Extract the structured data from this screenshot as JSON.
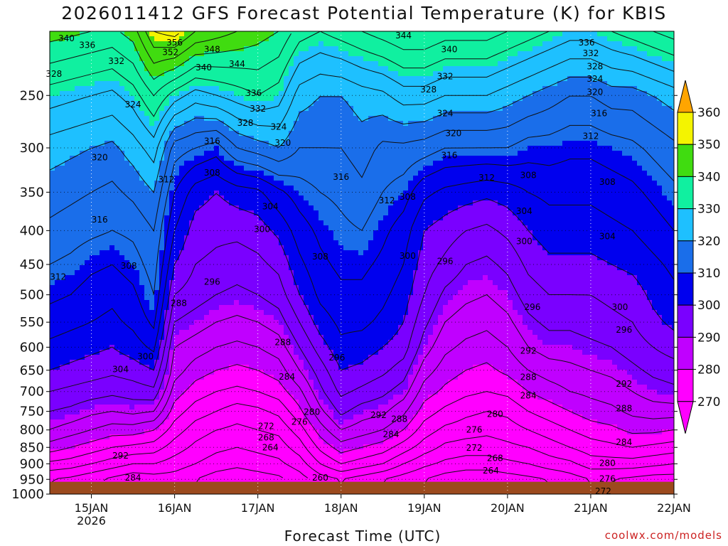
{
  "chart_data": {
    "type": "heatmap",
    "title": "2026011412 GFS Forecast Potential Temperature (K) for KBIS",
    "xlabel": "Forecast Time (UTC)",
    "ylabel": "",
    "credit": "coolwx.com/models",
    "x_ticks": [
      "15JAN",
      "16JAN",
      "17JAN",
      "18JAN",
      "19JAN",
      "20JAN",
      "21JAN",
      "22JAN"
    ],
    "x_tick_sublabel": "2026",
    "xlim_days": [
      14.5,
      22.0
    ],
    "y_ticks": [
      250,
      300,
      350,
      400,
      450,
      500,
      550,
      600,
      650,
      700,
      750,
      800,
      850,
      900,
      950,
      1000
    ],
    "ylim_hPa": [
      200,
      1000
    ],
    "y_scale": "log",
    "ground": {
      "label": "terrain",
      "top_hPa": 958,
      "color": "#9c4a1e"
    },
    "colorbar": {
      "levels": [
        270,
        280,
        290,
        300,
        310,
        320,
        330,
        340,
        350,
        360
      ],
      "colors": [
        "#ff00ff",
        "#c000ff",
        "#7a00ff",
        "#0000ee",
        "#1a6eea",
        "#1ec0ff",
        "#10f0a0",
        "#40dc10",
        "#f4f400",
        "#ffa500"
      ],
      "extend_both": true
    },
    "contour_interval_K": 4,
    "theta_profiles": {
      "days": [
        14.5,
        14.75,
        15.0,
        15.25,
        15.5,
        15.75,
        16.0,
        16.25,
        16.5,
        16.75,
        17.0,
        17.25,
        17.5,
        17.75,
        18.0,
        18.25,
        18.5,
        18.75,
        19.0,
        19.25,
        19.5,
        19.75,
        20.0,
        20.25,
        20.5,
        20.75,
        21.0,
        21.25,
        21.5,
        21.75,
        22.0
      ],
      "pressures_hPa": [
        950,
        900,
        850,
        800,
        750,
        700,
        650,
        600,
        550,
        500,
        450,
        400,
        350,
        300,
        250,
        200
      ],
      "theta_K": [
        [
          268,
          275,
          282,
          288,
          292,
          296,
          300,
          303,
          306,
          309,
          312,
          315,
          318,
          322,
          330,
          342
        ],
        [
          267,
          274,
          280,
          286,
          291,
          295,
          299,
          302,
          305,
          308,
          311,
          314,
          317,
          321,
          329,
          341
        ],
        [
          265,
          272,
          278,
          284,
          289,
          294,
          298,
          301,
          304,
          306,
          309,
          313,
          316,
          320,
          328,
          340
        ],
        [
          263,
          270,
          276,
          282,
          288,
          293,
          297,
          300,
          303,
          305,
          308,
          312,
          315,
          319,
          327,
          339
        ],
        [
          261,
          268,
          275,
          282,
          289,
          294,
          298,
          302,
          305,
          307,
          310,
          313,
          317,
          322,
          330,
          342
        ],
        [
          262,
          268,
          274,
          280,
          288,
          295,
          300,
          305,
          309,
          312,
          314,
          316,
          320,
          326,
          336,
          352
        ],
        [
          262,
          266,
          270,
          274,
          278,
          282,
          286,
          288,
          292,
          296,
          300,
          304,
          308,
          314,
          330,
          354
        ],
        [
          260,
          264,
          267,
          270,
          274,
          278,
          282,
          286,
          290,
          294,
          296,
          298,
          302,
          312,
          326,
          348
        ],
        [
          258,
          262,
          265,
          268,
          272,
          276,
          280,
          284,
          288,
          292,
          295,
          297,
          300,
          310,
          328,
          346
        ],
        [
          257,
          261,
          264,
          267,
          270,
          275,
          279,
          283,
          287,
          291,
          294,
          297,
          302,
          316,
          330,
          344
        ],
        [
          258,
          262,
          265,
          268,
          271,
          276,
          280,
          284,
          288,
          292,
          295,
          298,
          303,
          318,
          332,
          342
        ],
        [
          259,
          263,
          266,
          269,
          273,
          278,
          282,
          286,
          290,
          294,
          297,
          301,
          307,
          320,
          330,
          340
        ],
        [
          262,
          266,
          270,
          274,
          279,
          283,
          288,
          292,
          296,
          300,
          303,
          306,
          310,
          316,
          322,
          334
        ],
        [
          266,
          272,
          277,
          282,
          287,
          291,
          294,
          298,
          302,
          305,
          307,
          309,
          312,
          316,
          320,
          332
        ],
        [
          268,
          276,
          282,
          288,
          293,
          297,
          300,
          303,
          305,
          307,
          309,
          311,
          313,
          316,
          320,
          334
        ],
        [
          266,
          274,
          280,
          286,
          290,
          295,
          299,
          302,
          305,
          307,
          309,
          312,
          315,
          318,
          322,
          336
        ],
        [
          264,
          272,
          278,
          284,
          289,
          293,
          297,
          300,
          303,
          305,
          307,
          309,
          312,
          315,
          323,
          338
        ],
        [
          262,
          268,
          274,
          280,
          285,
          290,
          294,
          298,
          300,
          302,
          304,
          306,
          310,
          315,
          326,
          340
        ],
        [
          260,
          265,
          270,
          274,
          278,
          282,
          286,
          290,
          293,
          296,
          298,
          300,
          305,
          314,
          326,
          340
        ],
        [
          258,
          263,
          267,
          271,
          275,
          279,
          282,
          285,
          288,
          291,
          295,
          298,
          303,
          312,
          324,
          338
        ],
        [
          257,
          262,
          266,
          270,
          273,
          277,
          280,
          283,
          286,
          289,
          292,
          296,
          302,
          312,
          324,
          338
        ],
        [
          257,
          262,
          266,
          269,
          272,
          276,
          279,
          282,
          285,
          288,
          291,
          295,
          301,
          312,
          324,
          338
        ],
        [
          258,
          263,
          267,
          270,
          273,
          277,
          281,
          284,
          287,
          290,
          293,
          297,
          302,
          312,
          322,
          336
        ],
        [
          259,
          264,
          268,
          272,
          276,
          280,
          284,
          288,
          291,
          294,
          297,
          300,
          304,
          310,
          320,
          334
        ],
        [
          260,
          266,
          270,
          274,
          278,
          282,
          286,
          290,
          293,
          296,
          299,
          302,
          305,
          310,
          318,
          332
        ],
        [
          262,
          267,
          272,
          276,
          280,
          284,
          287,
          290,
          293,
          296,
          299,
          302,
          305,
          309,
          316,
          330
        ],
        [
          264,
          270,
          274,
          278,
          282,
          285,
          288,
          291,
          294,
          296,
          299,
          302,
          305,
          309,
          316,
          330
        ],
        [
          264,
          270,
          275,
          279,
          283,
          286,
          289,
          292,
          295,
          297,
          300,
          303,
          306,
          310,
          318,
          332
        ],
        [
          263,
          270,
          276,
          281,
          285,
          288,
          291,
          294,
          296,
          298,
          301,
          304,
          307,
          311,
          318,
          334
        ],
        [
          262,
          269,
          275,
          281,
          286,
          290,
          293,
          296,
          299,
          301,
          303,
          306,
          309,
          313,
          320,
          336
        ],
        [
          262,
          268,
          274,
          280,
          286,
          291,
          294,
          298,
          301,
          303,
          305,
          308,
          311,
          315,
          322,
          338
        ]
      ]
    },
    "contour_labels": [
      {
        "text": "340",
        "day": 14.7,
        "p": 205
      },
      {
        "text": "336",
        "day": 14.95,
        "p": 210
      },
      {
        "text": "332",
        "day": 15.3,
        "p": 222
      },
      {
        "text": "328",
        "day": 14.55,
        "p": 232
      },
      {
        "text": "324",
        "day": 15.5,
        "p": 258
      },
      {
        "text": "320",
        "day": 15.1,
        "p": 310
      },
      {
        "text": "316",
        "day": 15.1,
        "p": 385
      },
      {
        "text": "312",
        "day": 14.6,
        "p": 470
      },
      {
        "text": "308",
        "day": 15.45,
        "p": 452
      },
      {
        "text": "304",
        "day": 15.35,
        "p": 648
      },
      {
        "text": "300",
        "day": 15.65,
        "p": 620
      },
      {
        "text": "292",
        "day": 15.35,
        "p": 875
      },
      {
        "text": "284",
        "day": 15.5,
        "p": 945
      },
      {
        "text": "356",
        "day": 16.0,
        "p": 208
      },
      {
        "text": "352",
        "day": 15.95,
        "p": 215
      },
      {
        "text": "348",
        "day": 16.45,
        "p": 213
      },
      {
        "text": "340",
        "day": 16.35,
        "p": 227
      },
      {
        "text": "344",
        "day": 16.75,
        "p": 224
      },
      {
        "text": "336",
        "day": 16.95,
        "p": 248
      },
      {
        "text": "332",
        "day": 17.0,
        "p": 262
      },
      {
        "text": "328",
        "day": 16.85,
        "p": 275
      },
      {
        "text": "324",
        "day": 17.25,
        "p": 279
      },
      {
        "text": "320",
        "day": 17.3,
        "p": 295
      },
      {
        "text": "316",
        "day": 16.45,
        "p": 293
      },
      {
        "text": "312",
        "day": 15.9,
        "p": 335
      },
      {
        "text": "308",
        "day": 16.45,
        "p": 327
      },
      {
        "text": "304",
        "day": 17.15,
        "p": 368
      },
      {
        "text": "300",
        "day": 17.05,
        "p": 398
      },
      {
        "text": "296",
        "day": 16.45,
        "p": 478
      },
      {
        "text": "288",
        "day": 16.05,
        "p": 515
      },
      {
        "text": "288",
        "day": 17.3,
        "p": 590
      },
      {
        "text": "284",
        "day": 17.35,
        "p": 665
      },
      {
        "text": "280",
        "day": 17.65,
        "p": 752
      },
      {
        "text": "276",
        "day": 17.5,
        "p": 778
      },
      {
        "text": "272",
        "day": 17.1,
        "p": 790
      },
      {
        "text": "268",
        "day": 17.1,
        "p": 822
      },
      {
        "text": "264",
        "day": 17.15,
        "p": 850
      },
      {
        "text": "260",
        "day": 17.75,
        "p": 945
      },
      {
        "text": "316",
        "day": 18.0,
        "p": 332
      },
      {
        "text": "308",
        "day": 17.75,
        "p": 438
      },
      {
        "text": "296",
        "day": 17.95,
        "p": 622
      },
      {
        "text": "312",
        "day": 18.55,
        "p": 360
      },
      {
        "text": "308",
        "day": 18.8,
        "p": 356
      },
      {
        "text": "300",
        "day": 18.8,
        "p": 437
      },
      {
        "text": "292",
        "day": 18.45,
        "p": 760
      },
      {
        "text": "288",
        "day": 18.7,
        "p": 770
      },
      {
        "text": "284",
        "day": 18.6,
        "p": 812
      },
      {
        "text": "344",
        "day": 18.75,
        "p": 203
      },
      {
        "text": "340",
        "day": 19.3,
        "p": 213
      },
      {
        "text": "332",
        "day": 19.25,
        "p": 234
      },
      {
        "text": "328",
        "day": 19.05,
        "p": 245
      },
      {
        "text": "324",
        "day": 19.25,
        "p": 266
      },
      {
        "text": "320",
        "day": 19.35,
        "p": 285
      },
      {
        "text": "316",
        "day": 19.3,
        "p": 308
      },
      {
        "text": "312",
        "day": 19.75,
        "p": 333
      },
      {
        "text": "308",
        "day": 20.25,
        "p": 330
      },
      {
        "text": "304",
        "day": 20.2,
        "p": 374
      },
      {
        "text": "300",
        "day": 20.2,
        "p": 415
      },
      {
        "text": "296",
        "day": 19.25,
        "p": 445
      },
      {
        "text": "296",
        "day": 20.3,
        "p": 522
      },
      {
        "text": "292",
        "day": 20.25,
        "p": 608
      },
      {
        "text": "288",
        "day": 20.25,
        "p": 666
      },
      {
        "text": "284",
        "day": 20.25,
        "p": 710
      },
      {
        "text": "280",
        "day": 19.85,
        "p": 757
      },
      {
        "text": "276",
        "day": 19.6,
        "p": 800
      },
      {
        "text": "272",
        "day": 19.6,
        "p": 852
      },
      {
        "text": "268",
        "day": 19.85,
        "p": 883
      },
      {
        "text": "264",
        "day": 19.8,
        "p": 922
      },
      {
        "text": "336",
        "day": 20.95,
        "p": 208
      },
      {
        "text": "332",
        "day": 21.0,
        "p": 216
      },
      {
        "text": "328",
        "day": 21.05,
        "p": 226
      },
      {
        "text": "324",
        "day": 21.05,
        "p": 236
      },
      {
        "text": "320",
        "day": 21.05,
        "p": 247
      },
      {
        "text": "316",
        "day": 21.1,
        "p": 266
      },
      {
        "text": "312",
        "day": 21.0,
        "p": 288
      },
      {
        "text": "308",
        "day": 21.2,
        "p": 338
      },
      {
        "text": "304",
        "day": 21.2,
        "p": 408
      },
      {
        "text": "300",
        "day": 21.35,
        "p": 522
      },
      {
        "text": "296",
        "day": 21.4,
        "p": 565
      },
      {
        "text": "292",
        "day": 21.4,
        "p": 682
      },
      {
        "text": "288",
        "day": 21.4,
        "p": 742
      },
      {
        "text": "284",
        "day": 21.4,
        "p": 835
      },
      {
        "text": "280",
        "day": 21.2,
        "p": 898
      },
      {
        "text": "276",
        "day": 21.2,
        "p": 948
      },
      {
        "text": "272",
        "day": 21.15,
        "p": 990
      }
    ]
  }
}
